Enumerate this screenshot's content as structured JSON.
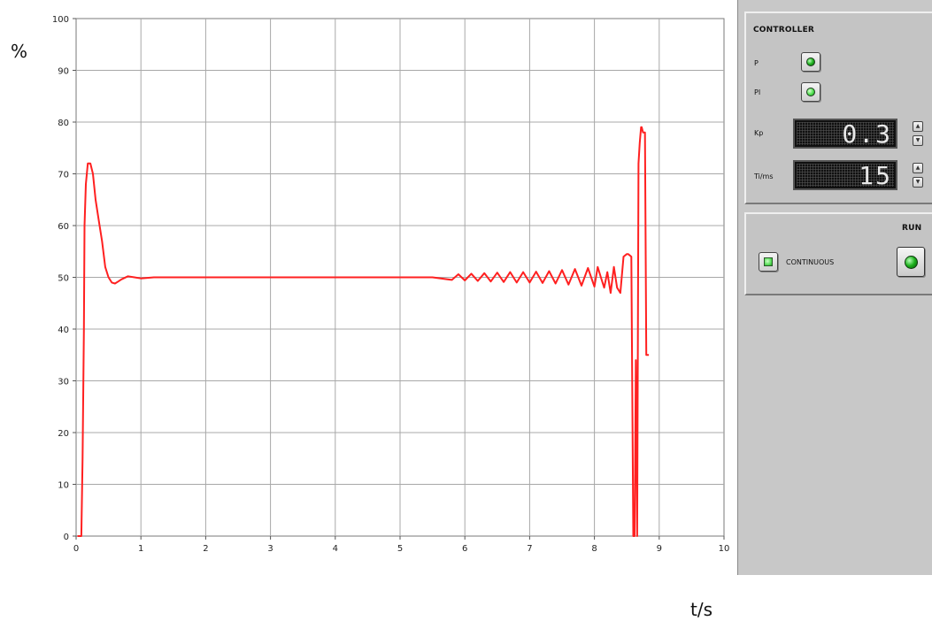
{
  "chart_data": {
    "type": "line",
    "ylabel": "%",
    "xlabel": "t/s",
    "xlim": [
      0,
      10
    ],
    "ylim": [
      0,
      100
    ],
    "x_ticks": [
      0,
      1,
      2,
      3,
      4,
      5,
      6,
      7,
      8,
      9,
      10
    ],
    "y_ticks": [
      0,
      10,
      20,
      30,
      40,
      50,
      60,
      70,
      80,
      90,
      100
    ],
    "grid": true,
    "line_color": "#ff2020",
    "series": [
      {
        "x": [
          0.02,
          0.08,
          0.1,
          0.12,
          0.13,
          0.15,
          0.18,
          0.22,
          0.26,
          0.3,
          0.35,
          0.4,
          0.45,
          0.5,
          0.55,
          0.6,
          0.65,
          0.7,
          0.8,
          0.9,
          1.0,
          1.2,
          1.5,
          2.0,
          2.5,
          3.0,
          3.5,
          4.0,
          4.5,
          5.0,
          5.5,
          5.8,
          5.9,
          6.0,
          6.1,
          6.2,
          6.3,
          6.4,
          6.5,
          6.6,
          6.7,
          6.8,
          6.9,
          7.0,
          7.1,
          7.2,
          7.3,
          7.4,
          7.5,
          7.6,
          7.7,
          7.8,
          7.9,
          8.0,
          8.05,
          8.1,
          8.15,
          8.2,
          8.25,
          8.3,
          8.35,
          8.4,
          8.45,
          8.5,
          8.52,
          8.57,
          8.6,
          8.62,
          8.64,
          8.66,
          8.68,
          8.7,
          8.72,
          8.73,
          8.75,
          8.78,
          8.8,
          8.82,
          8.84
        ],
        "y": [
          0,
          0,
          15,
          40,
          60,
          68,
          72,
          72,
          70,
          65,
          61,
          57,
          52,
          50,
          49,
          48.8,
          49.2,
          49.6,
          50.2,
          50,
          49.8,
          50,
          50,
          50,
          50,
          50,
          50,
          50,
          50,
          50,
          50,
          49.5,
          50.6,
          49.4,
          50.7,
          49.3,
          50.8,
          49.2,
          50.9,
          49.1,
          51,
          49,
          51,
          49,
          51.1,
          48.9,
          51.2,
          48.8,
          51.4,
          48.6,
          51.6,
          48.4,
          51.8,
          48.2,
          52,
          50,
          48,
          51,
          47,
          52,
          48,
          47,
          54,
          54.5,
          54.5,
          54,
          0,
          0,
          34,
          0,
          72,
          76,
          79,
          79,
          78,
          78,
          35,
          35,
          35
        ]
      }
    ]
  },
  "panel": {
    "controller_title": "CONTROLLER",
    "p_label": "P",
    "pi_label": "PI",
    "kp_label": "Kp",
    "kp_value": "0.3",
    "ti_label": "Ti/ms",
    "ti_value": "15",
    "continuous_label": "CONTINUOUS",
    "run_title": "RUN"
  }
}
